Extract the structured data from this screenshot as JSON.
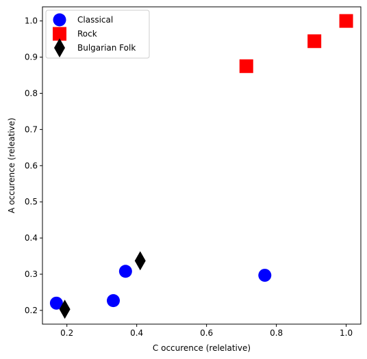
{
  "chart_data": {
    "type": "scatter",
    "xlabel": "C occurence (relelative)",
    "ylabel": "A occurence (releative)",
    "xlim": [
      0.13,
      1.042
    ],
    "ylim": [
      0.162,
      1.039
    ],
    "xticks": [
      0.2,
      0.4,
      0.6,
      0.8,
      1.0
    ],
    "yticks": [
      0.2,
      0.3,
      0.4,
      0.5,
      0.6,
      0.7,
      0.8,
      0.9,
      1.0
    ],
    "xtick_labels": [
      "0.2",
      "0.4",
      "0.6",
      "0.8",
      "1.0"
    ],
    "ytick_labels": [
      "0.2",
      "0.3",
      "0.4",
      "0.5",
      "0.6",
      "0.7",
      "0.8",
      "0.9",
      "1.0"
    ],
    "grid": false,
    "legend_position": "top-left",
    "series": [
      {
        "name": "Classical",
        "marker": "circle",
        "color": "#0000ff",
        "points": [
          [
            0.17,
            0.22
          ],
          [
            0.333,
            0.227
          ],
          [
            0.368,
            0.308
          ],
          [
            0.767,
            0.297
          ]
        ]
      },
      {
        "name": "Rock",
        "marker": "square",
        "color": "#ff0000",
        "points": [
          [
            0.714,
            0.875
          ],
          [
            0.909,
            0.944
          ],
          [
            1.0,
            1.0
          ]
        ]
      },
      {
        "name": "Bulgarian Folk",
        "marker": "diamond",
        "color": "#000000",
        "points": [
          [
            0.194,
            0.203
          ],
          [
            0.41,
            0.337
          ]
        ]
      }
    ]
  }
}
